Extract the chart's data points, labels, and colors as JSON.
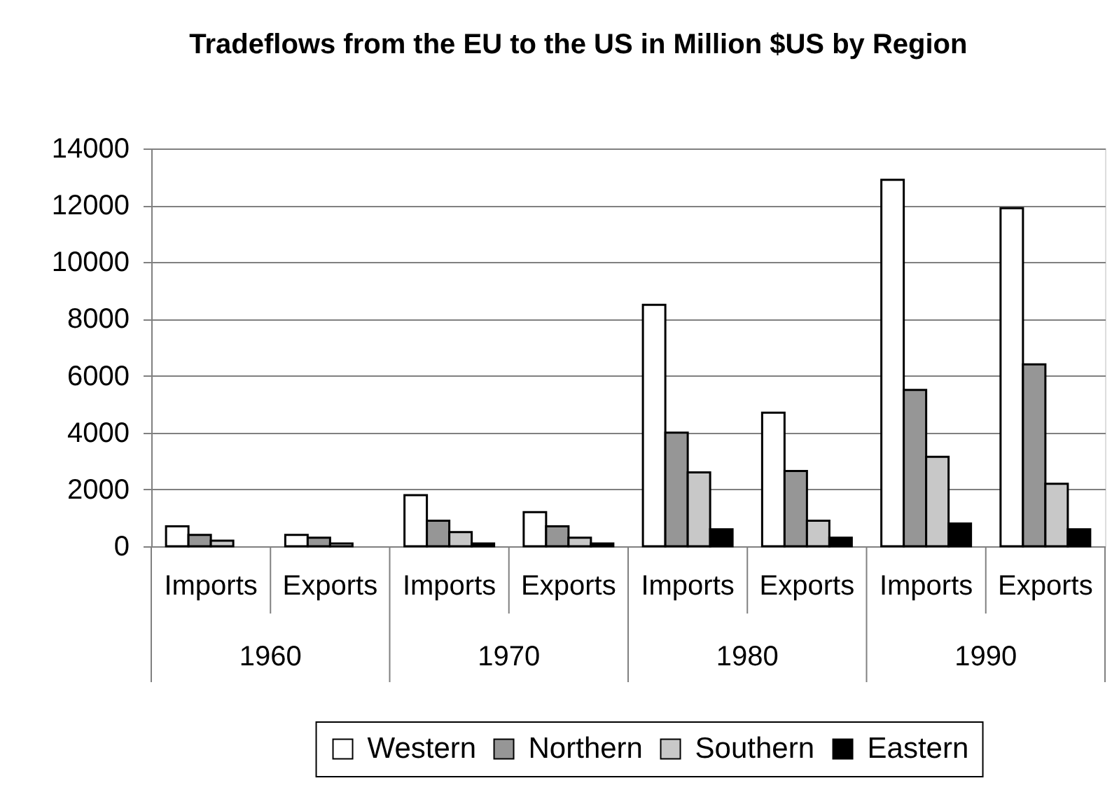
{
  "chart_data": {
    "type": "bar",
    "title": "Tradeflows from the EU to the US in Million $US by Region",
    "categories": [
      "Imports",
      "Exports",
      "Imports",
      "Exports",
      "Imports",
      "Exports",
      "Imports",
      "Exports"
    ],
    "series": [
      {
        "name": "Western",
        "color": "#ffffff",
        "values": [
          700,
          400,
          1800,
          1200,
          8500,
          4700,
          12900,
          11900
        ]
      },
      {
        "name": "Northern",
        "color": "#969696",
        "values": [
          400,
          300,
          900,
          700,
          4000,
          2650,
          5500,
          6400
        ]
      },
      {
        "name": "Southern",
        "color": "#c8c8c8",
        "values": [
          200,
          100,
          500,
          300,
          2600,
          900,
          3150,
          2200
        ]
      },
      {
        "name": "Eastern",
        "color": "#000000",
        "values": [
          null,
          null,
          100,
          100,
          600,
          300,
          800,
          600
        ]
      }
    ],
    "annotations": [
      "1960",
      "1970",
      "1980",
      "1990"
    ],
    "ylim": [
      0,
      14000
    ],
    "yticks": [
      0,
      2000,
      4000,
      6000,
      8000,
      10000,
      12000,
      14000
    ],
    "grid": "y",
    "legend": "bottom"
  }
}
